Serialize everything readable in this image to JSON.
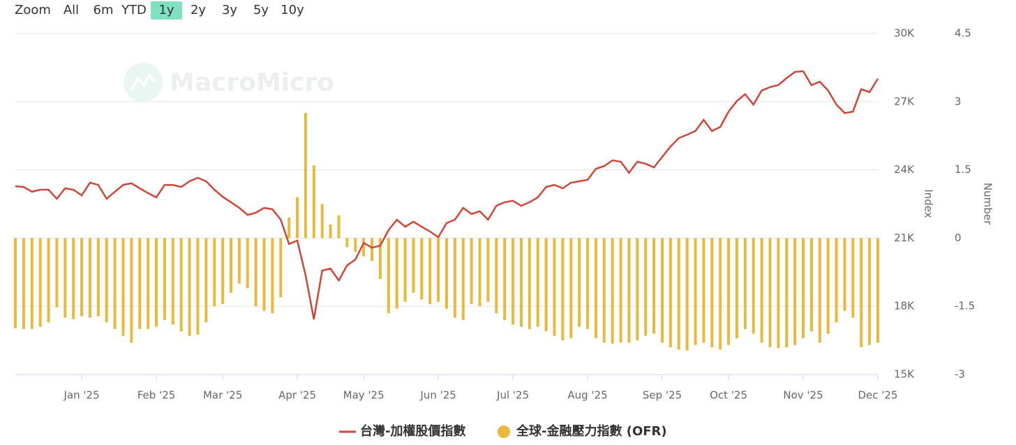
{
  "zoom": {
    "label": "Zoom",
    "buttons": [
      "All",
      "6m",
      "YTD",
      "1y",
      "2y",
      "3y",
      "5y",
      "10y"
    ],
    "active": 3
  },
  "chart_data": {
    "type": "combo",
    "watermark": "MacroMicro",
    "ylabel": "Index",
    "y2label": "Number",
    "categories": [
      null,
      null,
      null,
      null,
      null,
      null,
      null,
      null,
      "Jan '25",
      null,
      null,
      null,
      null,
      null,
      null,
      null,
      null,
      "Feb '25",
      null,
      null,
      null,
      null,
      null,
      null,
      null,
      "Mar '25",
      null,
      null,
      null,
      null,
      null,
      null,
      null,
      null,
      "Apr '25",
      null,
      null,
      null,
      null,
      null,
      null,
      null,
      "May '25",
      null,
      null,
      null,
      null,
      null,
      null,
      null,
      null,
      "Jun '25",
      null,
      null,
      null,
      null,
      null,
      null,
      null,
      null,
      "Jul '25",
      null,
      null,
      null,
      null,
      null,
      null,
      null,
      null,
      "Aug '25",
      null,
      null,
      null,
      null,
      null,
      null,
      null,
      null,
      "Sep '25",
      null,
      null,
      null,
      null,
      null,
      null,
      null,
      "Oct '25",
      null,
      null,
      null,
      null,
      null,
      null,
      null,
      null,
      "Nov '25",
      null,
      null,
      null,
      null,
      null,
      null,
      null,
      null,
      "Dec '25"
    ],
    "series": [
      {
        "name": "台灣-加權股價指數",
        "type": "line",
        "color": "#d0453a",
        "values": [
          23280,
          23250,
          23040,
          23130,
          23130,
          22730,
          23190,
          23130,
          22880,
          23440,
          23340,
          22730,
          23040,
          23340,
          23410,
          23190,
          22980,
          22790,
          23340,
          23340,
          23250,
          23500,
          23650,
          23500,
          23130,
          22820,
          22580,
          22330,
          22020,
          22120,
          22330,
          22270,
          21810,
          20740,
          20890,
          19360,
          17430,
          19570,
          19660,
          19140,
          19800,
          20060,
          20790,
          20580,
          20670,
          21350,
          21810,
          21500,
          21720,
          21500,
          21290,
          21040,
          21660,
          21810,
          22330,
          22060,
          22180,
          21810,
          22420,
          22580,
          22640,
          22420,
          22580,
          22790,
          23250,
          23340,
          23190,
          23440,
          23500,
          23560,
          24050,
          24170,
          24420,
          24360,
          23870,
          24360,
          24270,
          24110,
          24570,
          25030,
          25400,
          25550,
          25710,
          26200,
          25710,
          25890,
          26560,
          27030,
          27330,
          26870,
          27490,
          27640,
          27730,
          28040,
          28310,
          28340,
          27730,
          27880,
          27490,
          26870,
          26500,
          26560,
          27550,
          27420,
          28010
        ]
      },
      {
        "name": "全球-金融壓力指數 (OFR)",
        "type": "bar",
        "axis": "y2",
        "color": "#e8b93c",
        "values": [
          -1.98,
          -2.0,
          -2.0,
          -1.95,
          -1.85,
          -1.52,
          -1.75,
          -1.78,
          -1.72,
          -1.75,
          -1.72,
          -1.85,
          -2.0,
          -2.15,
          -2.3,
          -2.0,
          -2.0,
          -1.95,
          -1.8,
          -1.9,
          -2.05,
          -2.15,
          -2.12,
          -1.85,
          -1.5,
          -1.45,
          -1.2,
          -1.0,
          -1.1,
          -1.5,
          -1.6,
          -1.65,
          -1.3,
          0.45,
          0.9,
          2.75,
          1.6,
          0.75,
          0.3,
          0.5,
          -0.2,
          -0.3,
          -0.4,
          -0.5,
          -0.9,
          -1.65,
          -1.55,
          -1.4,
          -1.2,
          -1.35,
          -1.45,
          -1.4,
          -1.55,
          -1.75,
          -1.8,
          -1.45,
          -1.5,
          -1.4,
          -1.65,
          -1.8,
          -1.9,
          -1.95,
          -2.0,
          -1.95,
          -2.05,
          -2.15,
          -2.25,
          -2.2,
          -1.95,
          -2.0,
          -2.2,
          -2.3,
          -2.32,
          -2.3,
          -2.3,
          -2.25,
          -2.15,
          -2.1,
          -2.3,
          -2.4,
          -2.45,
          -2.47,
          -2.35,
          -2.3,
          -2.4,
          -2.45,
          -2.35,
          -2.2,
          -2.0,
          -2.1,
          -2.3,
          -2.4,
          -2.42,
          -2.4,
          -2.35,
          -2.2,
          -2.05,
          -2.3,
          -2.1,
          -1.85,
          -1.6,
          -1.75,
          -2.4,
          -2.35,
          -2.3
        ]
      }
    ],
    "ylim": [
      15000,
      30000
    ],
    "yticks": [
      {
        "value": 15000,
        "label": "15K"
      },
      {
        "value": 18000,
        "label": "18K"
      },
      {
        "value": 21000,
        "label": "21K"
      },
      {
        "value": 24000,
        "label": "24K"
      },
      {
        "value": 27000,
        "label": "27K"
      },
      {
        "value": 30000,
        "label": "30K"
      }
    ],
    "y2lim": [
      -3,
      4.5
    ],
    "y2ticks": [
      -3,
      -1.5,
      0,
      1.5,
      3,
      4.5
    ],
    "grid": true
  }
}
